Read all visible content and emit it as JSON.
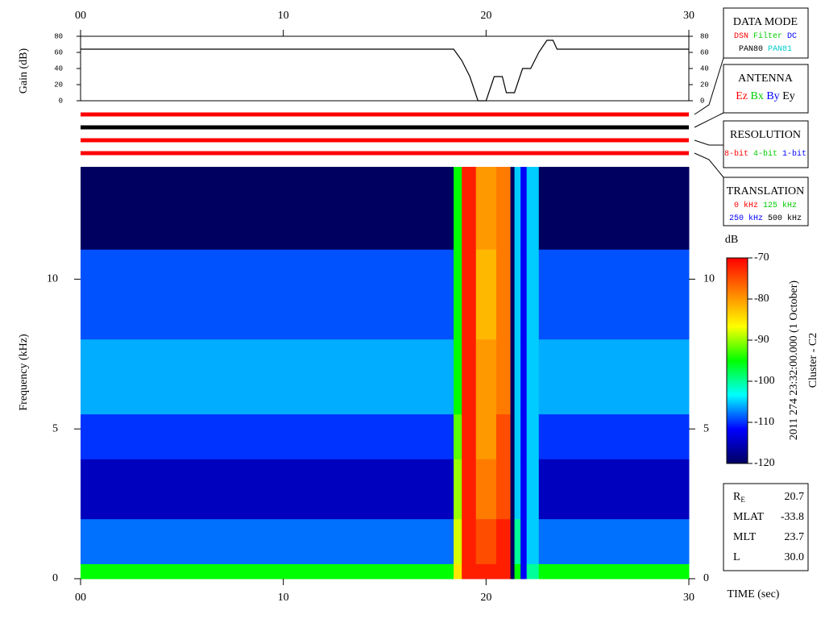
{
  "chart_data": [
    {
      "type": "line",
      "ylabel": "Gain (dB)",
      "x": [
        0,
        18.4,
        18.8,
        19.2,
        19.6,
        20.0,
        20.4,
        20.8,
        21.0,
        21.4,
        21.8,
        22.2,
        22.6,
        23.0,
        23.3,
        23.5,
        30
      ],
      "series": [
        {
          "color": "#000000",
          "values": [
            64,
            64,
            50,
            30,
            0,
            0,
            30,
            30,
            10,
            10,
            40,
            40,
            60,
            75,
            75,
            64,
            64
          ]
        }
      ],
      "xlim": [
        0,
        30
      ],
      "ylim": [
        0,
        80
      ],
      "xticks": [
        {
          "value": 0,
          "label": "00"
        },
        10,
        20,
        30
      ],
      "yticks": [
        0,
        20,
        40,
        60,
        80
      ]
    },
    {
      "type": "heatmap",
      "ylabel": "Frequency (kHz)",
      "xlabel": "TIME (sec)",
      "x_edges": [
        0,
        18.4,
        18.8,
        19.5,
        20.5,
        21.2,
        21.4,
        21.7,
        22.0,
        22.6,
        30
      ],
      "y_edges": [
        0,
        0.5,
        2,
        4,
        5.5,
        8,
        11,
        13.75
      ],
      "z": [
        [
          -95,
          -108,
          -115,
          -110,
          -106,
          -109,
          -125
        ],
        [
          -85,
          -88,
          -90,
          -92,
          -95,
          -95,
          -95
        ],
        [
          -72,
          -72,
          -72,
          -72,
          -72,
          -72,
          -72
        ],
        [
          -72,
          -75,
          -78,
          -80,
          -80,
          -82,
          -80
        ],
        [
          -72,
          -72,
          -75,
          -75,
          -78,
          -78,
          -78
        ],
        [
          -120,
          -120,
          -120,
          -120,
          -120,
          -120,
          -120
        ],
        [
          -95,
          -100,
          -105,
          -105,
          -105,
          -105,
          -105
        ],
        [
          -112,
          -112,
          -112,
          -112,
          -112,
          -112,
          -112
        ],
        [
          -100,
          -105,
          -105,
          -105,
          -105,
          -105,
          -105
        ],
        [
          -95,
          -108,
          -115,
          -110,
          -106,
          -109,
          -125
        ]
      ],
      "xlim": [
        0,
        30
      ],
      "ylim": [
        0,
        13.75
      ],
      "xticks": [
        {
          "value": 0,
          "label": "00"
        },
        10,
        20,
        30
      ],
      "yticks": [
        0,
        5,
        10
      ],
      "zlabel": "dB",
      "zlim": [
        -120,
        -70
      ],
      "zticks": [
        -70,
        -80,
        -90,
        -100,
        -110,
        -120
      ],
      "colorscale": [
        "#000060",
        "#0000ff",
        "#00ffff",
        "#00ff00",
        "#ffff00",
        "#ff8000",
        "#ff0000"
      ]
    }
  ],
  "indicators": [
    {
      "color": "#ff0000"
    },
    {
      "color": "#000000"
    },
    {
      "color": "#ff0000"
    },
    {
      "color": "#ff0000"
    }
  ],
  "legend_boxes": [
    {
      "title": "DATA MODE",
      "rows": [
        [
          {
            "text": "DSN",
            "color": "#ff0000"
          },
          {
            "text": "Filter",
            "color": "#00cc00"
          },
          {
            "text": "DC",
            "color": "#0000ff"
          }
        ],
        [
          {
            "text": "PAN80",
            "color": "#000000"
          },
          {
            "text": "PAN81",
            "color": "#00cccc"
          }
        ]
      ]
    },
    {
      "title": "ANTENNA",
      "rows": [
        [
          {
            "text": "Ez",
            "color": "#ff0000"
          },
          {
            "text": "Bx",
            "color": "#00cc00"
          },
          {
            "text": "By",
            "color": "#0000ff"
          },
          {
            "text": "Ey",
            "color": "#000000"
          }
        ]
      ]
    },
    {
      "title": "RESOLUTION",
      "rows": [
        [
          {
            "text": "8-bit",
            "color": "#ff0000"
          },
          {
            "text": "4-bit",
            "color": "#00cc00"
          },
          {
            "text": "1-bit",
            "color": "#0000ff"
          }
        ]
      ]
    },
    {
      "title": "TRANSLATION",
      "rows": [
        [
          {
            "text": "0 kHz",
            "color": "#ff0000"
          },
          {
            "text": "125 kHz",
            "color": "#00cc00"
          }
        ],
        [
          {
            "text": "250 kHz",
            "color": "#0000ff"
          },
          {
            "text": "500 kHz",
            "color": "#000000"
          }
        ]
      ]
    }
  ],
  "timestamp": "2011 274 23:32:00.000 (1 October)",
  "spacecraft": "Cluster - C2",
  "info": [
    {
      "label": "R",
      "sub": "E",
      "value": "20.7"
    },
    {
      "label": "MLAT",
      "value": "-33.8"
    },
    {
      "label": "MLT",
      "value": "23.7"
    },
    {
      "label": "L",
      "value": "30.0"
    }
  ]
}
